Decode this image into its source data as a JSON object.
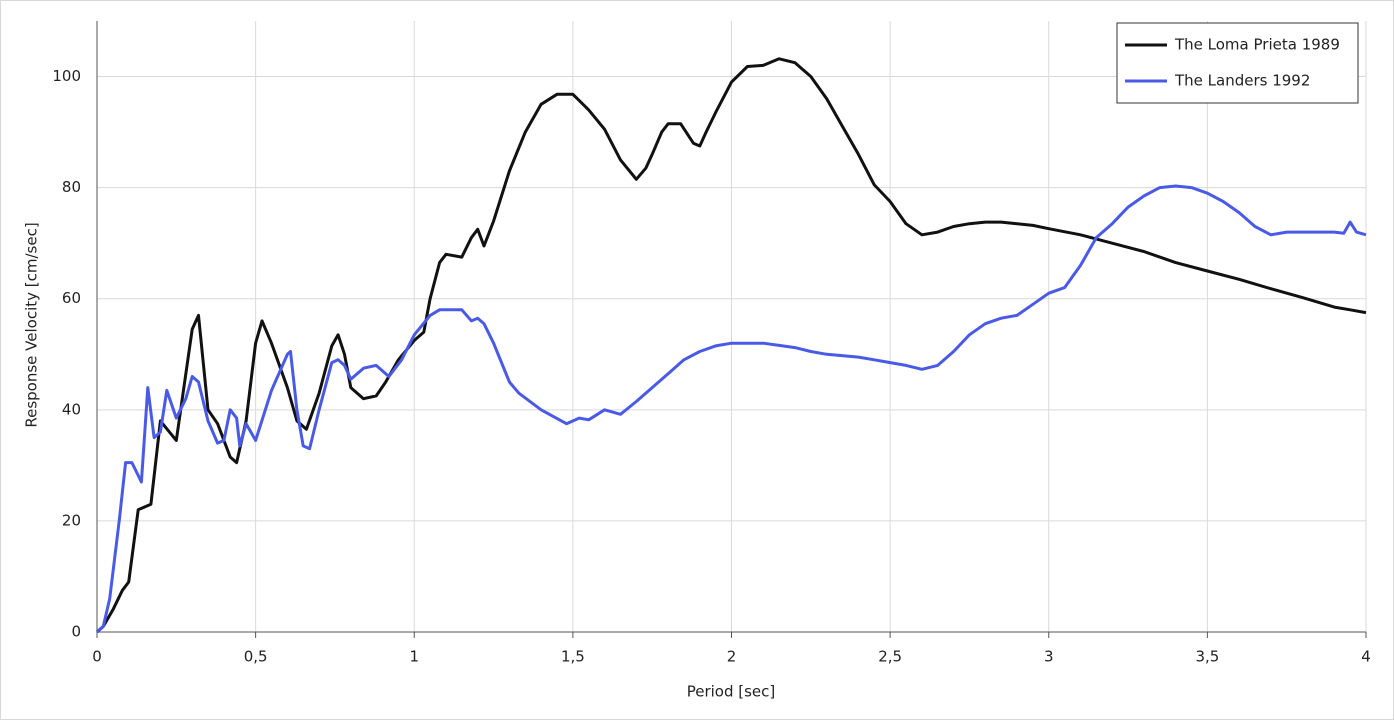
{
  "chart_data": {
    "type": "line",
    "xlabel": "Period [sec]",
    "ylabel": "Response Velocity [cm/sec]",
    "xlim": [
      0,
      4
    ],
    "ylim": [
      0,
      110
    ],
    "xticks": [
      0,
      {
        "value": 0.5,
        "label": "0,5"
      },
      1,
      {
        "value": 1.5,
        "label": "1,5"
      },
      2,
      {
        "value": 2.5,
        "label": "2,5"
      },
      3,
      {
        "value": 3.5,
        "label": "3,5"
      },
      4
    ],
    "yticks": [
      0,
      20,
      40,
      60,
      80,
      100
    ],
    "grid": true,
    "legend": "top-right",
    "series": [
      {
        "name": "The Loma Prieta 1989",
        "color": "#111111",
        "x": [
          0,
          0.02,
          0.05,
          0.08,
          0.1,
          0.13,
          0.17,
          0.2,
          0.25,
          0.3,
          0.32,
          0.35,
          0.38,
          0.42,
          0.44,
          0.47,
          0.5,
          0.52,
          0.55,
          0.6,
          0.63,
          0.66,
          0.7,
          0.74,
          0.76,
          0.78,
          0.8,
          0.84,
          0.88,
          0.91,
          0.95,
          1.0,
          1.03,
          1.05,
          1.08,
          1.1,
          1.15,
          1.18,
          1.2,
          1.22,
          1.25,
          1.3,
          1.35,
          1.4,
          1.45,
          1.5,
          1.55,
          1.6,
          1.65,
          1.7,
          1.73,
          1.75,
          1.78,
          1.8,
          1.84,
          1.88,
          1.9,
          1.92,
          1.95,
          2.0,
          2.05,
          2.1,
          2.15,
          2.2,
          2.25,
          2.3,
          2.35,
          2.4,
          2.45,
          2.5,
          2.55,
          2.6,
          2.65,
          2.7,
          2.75,
          2.8,
          2.85,
          2.9,
          2.95,
          3.0,
          3.1,
          3.2,
          3.3,
          3.4,
          3.5,
          3.6,
          3.7,
          3.8,
          3.9,
          3.95,
          4.0
        ],
        "values": [
          0,
          1,
          4,
          7.5,
          9,
          22,
          23,
          38,
          34.5,
          54.5,
          57,
          40,
          37.5,
          31.5,
          30.5,
          38,
          52,
          56,
          52,
          44,
          38,
          36.5,
          43,
          51.5,
          53.5,
          50,
          44,
          42,
          42.5,
          45,
          49,
          52.5,
          54,
          60,
          66.5,
          68,
          67.5,
          71,
          72.5,
          69.5,
          74,
          83,
          90,
          95,
          96.8,
          96.8,
          94,
          90.5,
          85,
          81.5,
          83.5,
          86,
          90,
          91.5,
          91.5,
          88,
          87.5,
          90,
          93.5,
          99,
          101.8,
          102,
          103.2,
          102.5,
          100,
          96,
          91,
          86,
          80.5,
          77.5,
          73.5,
          71.5,
          72,
          73,
          73.5,
          73.8,
          73.8,
          73.5,
          73.2,
          72.6,
          71.5,
          70,
          68.5,
          66.5,
          65,
          63.5,
          61.8,
          60.2,
          58.5,
          58,
          57.5
        ]
      },
      {
        "name": "The Landers 1992",
        "color": "#4a5ae8",
        "x": [
          0,
          0.02,
          0.04,
          0.07,
          0.09,
          0.11,
          0.14,
          0.16,
          0.18,
          0.2,
          0.22,
          0.25,
          0.28,
          0.3,
          0.32,
          0.35,
          0.38,
          0.4,
          0.42,
          0.44,
          0.45,
          0.47,
          0.5,
          0.55,
          0.6,
          0.61,
          0.63,
          0.65,
          0.67,
          0.7,
          0.74,
          0.76,
          0.78,
          0.8,
          0.84,
          0.88,
          0.92,
          0.96,
          1.0,
          1.05,
          1.08,
          1.15,
          1.18,
          1.2,
          1.22,
          1.25,
          1.3,
          1.33,
          1.4,
          1.48,
          1.52,
          1.55,
          1.6,
          1.65,
          1.7,
          1.75,
          1.8,
          1.85,
          1.9,
          1.95,
          2.0,
          2.1,
          2.15,
          2.2,
          2.25,
          2.3,
          2.4,
          2.45,
          2.5,
          2.55,
          2.6,
          2.65,
          2.7,
          2.75,
          2.8,
          2.85,
          2.9,
          2.95,
          3.0,
          3.05,
          3.1,
          3.15,
          3.2,
          3.25,
          3.3,
          3.35,
          3.4,
          3.45,
          3.5,
          3.55,
          3.6,
          3.65,
          3.7,
          3.75,
          3.8,
          3.9,
          3.93,
          3.95,
          3.97,
          4.0
        ],
        "values": [
          0,
          1,
          6,
          20,
          30.5,
          30.5,
          27,
          44,
          35,
          36,
          43.5,
          38.5,
          42,
          46,
          45,
          38,
          34,
          34.5,
          40,
          38.5,
          33.5,
          37.5,
          34.5,
          43.5,
          50,
          50.5,
          40,
          33.5,
          33,
          40,
          48.5,
          49,
          48,
          45.5,
          47.5,
          48,
          46,
          49,
          53.5,
          57,
          58,
          58,
          56,
          56.5,
          55.5,
          52,
          45,
          43,
          40,
          37.5,
          38.5,
          38.2,
          40,
          39.2,
          41.5,
          44,
          46.5,
          49,
          50.5,
          51.5,
          52,
          52,
          51.6,
          51.2,
          50.5,
          50,
          49.5,
          49,
          48.5,
          48,
          47.3,
          48,
          50.5,
          53.5,
          55.5,
          56.5,
          57,
          59,
          61,
          62,
          66,
          71,
          73.5,
          76.5,
          78.5,
          80,
          80.3,
          80,
          79,
          77.5,
          75.5,
          73,
          71.5,
          72,
          72,
          72,
          71.8,
          73.8,
          72,
          71.5
        ]
      }
    ]
  }
}
